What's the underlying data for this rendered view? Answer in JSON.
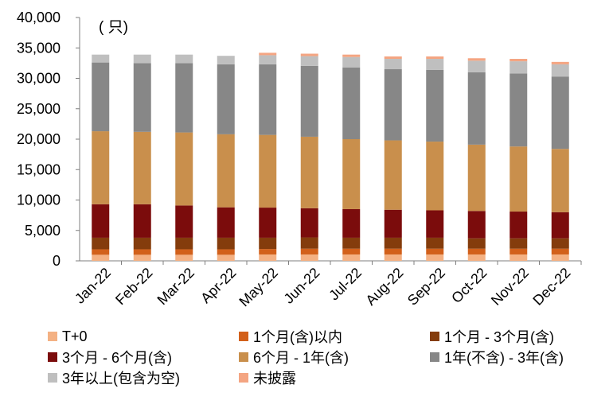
{
  "chart_data": {
    "type": "bar",
    "stacked": true,
    "unit_label": "( 只)",
    "categories": [
      "Jan-22",
      "Feb-22",
      "Mar-22",
      "Apr-22",
      "May-22",
      "Jun-22",
      "Jul-22",
      "Aug-22",
      "Sep-22",
      "Oct-22",
      "Nov-22",
      "Dec-22"
    ],
    "ylim": [
      0,
      40000
    ],
    "yticks": [
      0,
      5000,
      10000,
      15000,
      20000,
      25000,
      30000,
      35000,
      40000
    ],
    "ytick_labels": [
      "0",
      "5,000",
      "10,000",
      "15,000",
      "20,000",
      "25,000",
      "30,000",
      "35,000",
      "40,000"
    ],
    "grid": false,
    "legend_position": "bottom",
    "series": [
      {
        "name": "T+0",
        "color": "#f4b183",
        "values": [
          1000,
          1000,
          1000,
          1000,
          1050,
          1050,
          1050,
          1050,
          1050,
          1050,
          1050,
          1050
        ]
      },
      {
        "name": "1个月(含)以内",
        "color": "#d2601a",
        "values": [
          900,
          900,
          900,
          900,
          900,
          950,
          950,
          950,
          950,
          950,
          950,
          950
        ]
      },
      {
        "name": "1个月 - 3个月(含)",
        "color": "#843c0c",
        "values": [
          1900,
          1900,
          1900,
          1900,
          1850,
          1850,
          1800,
          1800,
          1800,
          1700,
          1700,
          1700
        ]
      },
      {
        "name": "3个月 - 6个月(含)",
        "color": "#7b0c0c",
        "values": [
          5500,
          5500,
          5300,
          5000,
          4950,
          4800,
          4700,
          4600,
          4500,
          4500,
          4400,
          4300
        ]
      },
      {
        "name": "6个月 - 1年(含)",
        "color": "#c98f4c",
        "values": [
          12000,
          11900,
          12000,
          12000,
          11950,
          11750,
          11500,
          11400,
          11300,
          10900,
          10700,
          10400
        ]
      },
      {
        "name": "1年(不含) - 3年(含)",
        "color": "#878787",
        "values": [
          11300,
          11300,
          11400,
          11500,
          11600,
          11650,
          11800,
          11700,
          11800,
          11900,
          12000,
          11900
        ]
      },
      {
        "name": "3年以上(包含为空)",
        "color": "#bfbfbf",
        "values": [
          1300,
          1400,
          1400,
          1400,
          1500,
          1600,
          1700,
          1700,
          1800,
          1900,
          2000,
          2000
        ]
      },
      {
        "name": "未披露",
        "color": "#f4a582",
        "values": [
          0,
          0,
          0,
          0,
          400,
          400,
          400,
          400,
          400,
          400,
          400,
          400
        ]
      }
    ]
  }
}
